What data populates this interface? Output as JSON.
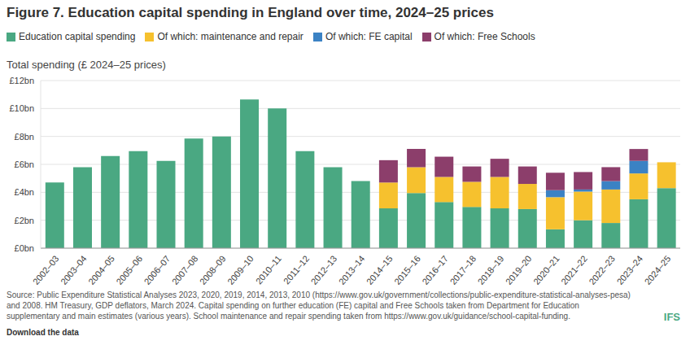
{
  "chart_data": {
    "type": "bar",
    "title": "Figure 7. Education capital spending in England over time, 2024–25 prices",
    "y_label": "Total spending (£ 2024–25 prices)",
    "source": "Source: Public Expenditure Statistical Analyses 2023, 2020, 2019, 2014, 2013, 2010 (https://www.gov.uk/government/collections/public-expenditure-statistical-analyses-pesa) and 2008. HM Treasury, GDP deflators, March 2024. Capital spending on further education (FE) capital and Free Schools taken from Department for Education supplementary and main estimates (various years). School maintenance and repair spending taken from https://www.gov.uk/guidance/school-capital-funding.",
    "annotations": [
      "Download the data",
      "IFS"
    ],
    "categories": [
      "2002–03",
      "2003–04",
      "2004–05",
      "2005–06",
      "2006–07",
      "2007–08",
      "2008–09",
      "2009–10",
      "2010–11",
      "2011–12",
      "2012–13",
      "2013–14",
      "2014–15",
      "2015–16",
      "2016–17",
      "2017–18",
      "2018–19",
      "2019–20",
      "2020–21",
      "2021–22",
      "2022–23",
      "2023–24",
      "2024–25"
    ],
    "series": [
      {
        "name": "Education capital spending",
        "color": "#4aa882",
        "values": [
          4.7,
          5.8,
          6.6,
          6.95,
          6.25,
          7.85,
          8.0,
          10.65,
          10.0,
          6.95,
          5.8,
          4.8,
          2.85,
          3.95,
          3.3,
          2.95,
          2.85,
          2.8,
          1.35,
          2.0,
          1.8,
          3.5,
          4.3
        ]
      },
      {
        "name": "Of which: maintenance and repair",
        "color": "#f6c12e",
        "values": [
          null,
          null,
          null,
          null,
          null,
          null,
          null,
          null,
          null,
          null,
          null,
          null,
          1.85,
          1.85,
          1.8,
          1.8,
          2.25,
          1.8,
          2.3,
          2.05,
          2.4,
          1.85,
          1.85
        ]
      },
      {
        "name": "Of which: FE capital",
        "color": "#3b82c4",
        "values": [
          null,
          null,
          null,
          null,
          null,
          null,
          null,
          null,
          null,
          null,
          null,
          null,
          null,
          null,
          null,
          null,
          null,
          null,
          0.5,
          0.15,
          0.6,
          0.9,
          null
        ]
      },
      {
        "name": "Of which: Free Schools",
        "color": "#8c3e6b",
        "values": [
          null,
          null,
          null,
          null,
          null,
          null,
          null,
          null,
          null,
          null,
          null,
          null,
          1.6,
          1.3,
          1.45,
          1.1,
          1.3,
          1.25,
          1.25,
          1.25,
          1.0,
          0.85,
          null
        ]
      }
    ],
    "ylim": [
      0,
      12
    ],
    "yticks": [
      {
        "value": 0,
        "label": "£0bn"
      },
      {
        "value": 2,
        "label": "£2bn"
      },
      {
        "value": 4,
        "label": "£4bn"
      },
      {
        "value": 6,
        "label": "£6bn"
      },
      {
        "value": 8,
        "label": "£8bn"
      },
      {
        "value": 10,
        "label": "£10bn"
      },
      {
        "value": 12,
        "label": "£12bn"
      }
    ],
    "grid": true,
    "stacked": true,
    "legend": "upper left"
  }
}
